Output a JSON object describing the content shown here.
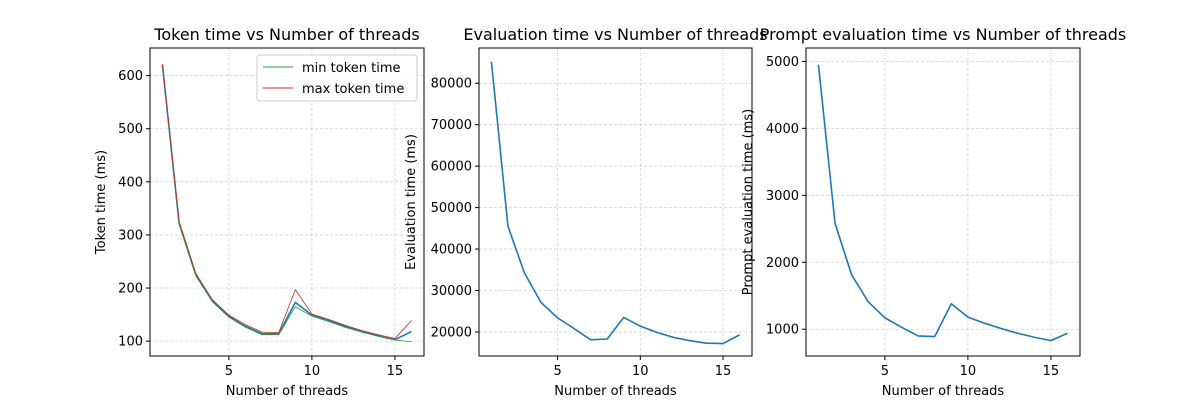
{
  "chart_data": [
    {
      "type": "line",
      "title": "Token time vs Number of threads",
      "xlabel": "Number of threads",
      "ylabel": "Token time (ms)",
      "xlim": [
        0.25,
        16.75
      ],
      "ylim": [
        72,
        652
      ],
      "xticks": [
        5,
        10,
        15
      ],
      "yticks": [
        100,
        200,
        300,
        400,
        500,
        600
      ],
      "grid": true,
      "legend_position": "top-right",
      "x": [
        1,
        2,
        3,
        4,
        5,
        6,
        7,
        8,
        9,
        10,
        11,
        12,
        13,
        14,
        15,
        16
      ],
      "series": [
        {
          "name": "",
          "color": "#1f77b4",
          "values": [
            620,
            323,
            226,
            177,
            147,
            128,
            114,
            114,
            173,
            149,
            139,
            128,
            118,
            110,
            103,
            118
          ]
        },
        {
          "name": "min token time",
          "color": "#2ca02c",
          "values": [
            618,
            320,
            223,
            174,
            145,
            126,
            112,
            112,
            165,
            147,
            137,
            126,
            117,
            109,
            102,
            99
          ]
        },
        {
          "name": "max token time",
          "color": "#d62728",
          "values": [
            622,
            326,
            228,
            178,
            149,
            131,
            117,
            116,
            197,
            151,
            141,
            130,
            120,
            112,
            105,
            139
          ]
        }
      ]
    },
    {
      "type": "line",
      "title": "Evaluation time vs Number of threads",
      "xlabel": "Number of threads",
      "ylabel": "Evaluation time (ms)",
      "xlim": [
        0.25,
        16.75
      ],
      "ylim": [
        14200,
        88500
      ],
      "xticks": [
        5,
        10,
        15
      ],
      "yticks": [
        20000,
        30000,
        40000,
        50000,
        60000,
        70000,
        80000
      ],
      "grid": true,
      "x": [
        1,
        2,
        3,
        4,
        5,
        6,
        7,
        8,
        9,
        10,
        11,
        12,
        13,
        14,
        15,
        16
      ],
      "series": [
        {
          "name": "",
          "color": "#1f77b4",
          "values": [
            85200,
            45500,
            34200,
            27100,
            23400,
            20800,
            18100,
            18300,
            23500,
            21400,
            19900,
            18700,
            17900,
            17300,
            17200,
            19300
          ]
        }
      ]
    },
    {
      "type": "line",
      "title": "Prompt evaluation time vs Number of threads",
      "xlabel": "Number of threads",
      "ylabel": "Prompt evaluation time (ms)",
      "xlim": [
        0.25,
        16.75
      ],
      "ylim": [
        600,
        5200
      ],
      "xticks": [
        5,
        10,
        15
      ],
      "yticks": [
        1000,
        2000,
        3000,
        4000,
        5000
      ],
      "grid": true,
      "x": [
        1,
        2,
        3,
        4,
        5,
        6,
        7,
        8,
        9,
        10,
        11,
        12,
        13,
        14,
        15,
        16
      ],
      "series": [
        {
          "name": "",
          "color": "#1f77b4",
          "values": [
            4950,
            2580,
            1810,
            1410,
            1170,
            1030,
            900,
            890,
            1380,
            1180,
            1090,
            1010,
            940,
            880,
            830,
            940
          ]
        }
      ]
    }
  ]
}
